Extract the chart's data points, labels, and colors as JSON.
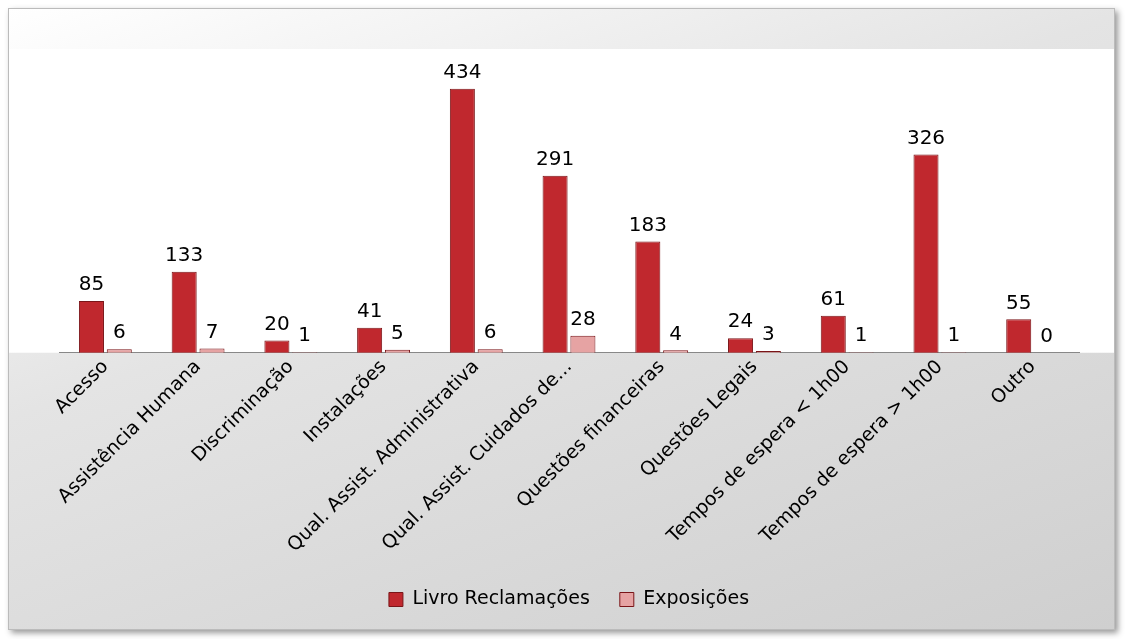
{
  "chart_data": {
    "type": "bar",
    "categories": [
      "Acesso",
      "Assistência Humana",
      "Discriminação",
      "Instalações",
      "Qual. Assist. Administrativa",
      "Qual. Assist. Cuidados de...",
      "Questões financeiras",
      "Questões Legais",
      "Tempos de espera < 1h00",
      "Tempos de espera > 1h00",
      "Outro"
    ],
    "series": [
      {
        "name": "Livro Reclamações",
        "color": "#c0282e",
        "values": [
          85,
          133,
          20,
          41,
          434,
          291,
          183,
          24,
          61,
          326,
          55
        ]
      },
      {
        "name": "Exposições",
        "color": "#e6a3a3",
        "values": [
          6,
          7,
          1,
          5,
          6,
          28,
          4,
          3,
          1,
          1,
          0
        ]
      }
    ],
    "data_labels": true,
    "legend": "bottom",
    "grid": false
  }
}
